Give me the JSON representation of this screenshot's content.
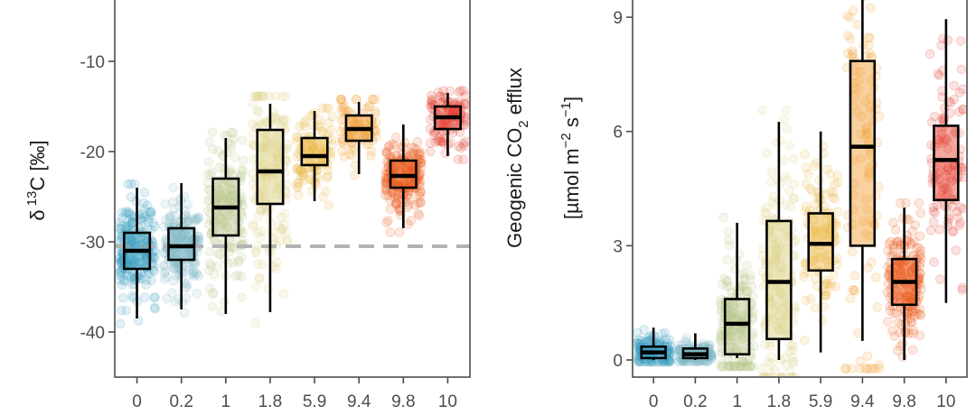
{
  "colors": {
    "groups": [
      "#3a9fbf",
      "#7fb7c6",
      "#b5c48a",
      "#d9cf7c",
      "#e8b43a",
      "#f09a2a",
      "#ec5a1c",
      "#e43b2c"
    ],
    "ref_line": "#b3b3b3",
    "axis": "#4d4d4d"
  },
  "chart_data": [
    {
      "type": "box",
      "title": "",
      "xlabel": "",
      "ylabel_parts": {
        "prefix": "δ",
        "sup": "13",
        "main": "C [‰]"
      },
      "categories": [
        "0",
        "0.2",
        "1",
        "1.8",
        "5.9",
        "9.4",
        "9.8",
        "10"
      ],
      "ylim": [
        -45,
        -3
      ],
      "yticks": [
        -40,
        -30,
        -20,
        -10
      ],
      "yticklabels": [
        "-40",
        "-30",
        "-20",
        "-10"
      ],
      "reference_line": -30.5,
      "boxes": [
        {
          "whisker_low": -38.5,
          "q1": -33.0,
          "median": -31.0,
          "q3": -29.0,
          "whisker_high": -24.0
        },
        {
          "whisker_low": -37.5,
          "q1": -32.0,
          "median": -30.5,
          "q3": -28.5,
          "whisker_high": -23.5
        },
        {
          "whisker_low": -38.0,
          "q1": -29.3,
          "median": -26.2,
          "q3": -23.0,
          "whisker_high": -18.5
        },
        {
          "whisker_low": -37.8,
          "q1": -25.8,
          "median": -22.2,
          "q3": -17.6,
          "whisker_high": -14.7
        },
        {
          "whisker_low": -25.5,
          "q1": -21.5,
          "median": -20.5,
          "q3": -18.5,
          "whisker_high": -15.5
        },
        {
          "whisker_low": -22.5,
          "q1": -18.8,
          "median": -17.5,
          "q3": -16.0,
          "whisker_high": -14.5
        },
        {
          "whisker_low": -28.5,
          "q1": -24.0,
          "median": -22.7,
          "q3": -21.0,
          "whisker_high": -17.0
        },
        {
          "whisker_low": -20.5,
          "q1": -17.5,
          "median": -16.2,
          "q3": -15.0,
          "whisker_high": -13.5
        }
      ],
      "points": {
        "count": [
          220,
          200,
          170,
          160,
          110,
          90,
          230,
          120
        ]
      }
    },
    {
      "type": "box",
      "title": "",
      "xlabel": "",
      "ylabel_parts": {
        "line1_main": "Geogenic CO",
        "line1_sub": "2",
        "line1_tail": " efflux",
        "line2_pre": "[µmol m",
        "line2_sup1": "−2",
        "line2_mid": " s",
        "line2_sup2": "−1",
        "line2_post": "]"
      },
      "categories": [
        "0",
        "0.2",
        "1",
        "1.8",
        "5.9",
        "9.4",
        "9.8",
        "10"
      ],
      "ylim": [
        -0.45,
        9.5
      ],
      "yticks": [
        0,
        3,
        6,
        9
      ],
      "yticklabels": [
        "0",
        "3",
        "6",
        "9"
      ],
      "boxes": [
        {
          "whisker_low": 0.0,
          "q1": 0.05,
          "median": 0.2,
          "q3": 0.35,
          "whisker_high": 0.85
        },
        {
          "whisker_low": 0.0,
          "q1": 0.05,
          "median": 0.15,
          "q3": 0.3,
          "whisker_high": 0.7
        },
        {
          "whisker_low": 0.05,
          "q1": 0.15,
          "median": 0.95,
          "q3": 1.6,
          "whisker_high": 3.6
        },
        {
          "whisker_low": 0.0,
          "q1": 0.55,
          "median": 2.05,
          "q3": 3.65,
          "whisker_high": 6.25
        },
        {
          "whisker_low": 0.2,
          "q1": 2.35,
          "median": 3.05,
          "q3": 3.85,
          "whisker_high": 6.0
        },
        {
          "whisker_low": 0.5,
          "q1": 3.0,
          "median": 5.6,
          "q3": 7.85,
          "whisker_high": 9.5
        },
        {
          "whisker_low": 0.0,
          "q1": 1.45,
          "median": 2.05,
          "q3": 2.65,
          "whisker_high": 4.0
        },
        {
          "whisker_low": 1.5,
          "q1": 4.2,
          "median": 5.25,
          "q3": 6.15,
          "whisker_high": 8.95
        }
      ],
      "points": {
        "count": [
          150,
          140,
          180,
          170,
          120,
          110,
          220,
          120
        ]
      }
    }
  ]
}
